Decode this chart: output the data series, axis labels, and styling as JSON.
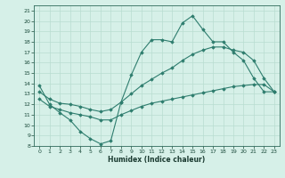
{
  "xlabel": "Humidex (Indice chaleur)",
  "ylabel": "",
  "bg_color": "#d6f0e8",
  "line_color": "#2e7d6e",
  "grid_color": "#b8ddd0",
  "xlim": [
    -0.5,
    23.5
  ],
  "ylim": [
    8,
    21.5
  ],
  "xticks": [
    0,
    1,
    2,
    3,
    4,
    5,
    6,
    7,
    8,
    9,
    10,
    11,
    12,
    13,
    14,
    15,
    16,
    17,
    18,
    19,
    20,
    21,
    22,
    23
  ],
  "yticks": [
    8,
    9,
    10,
    11,
    12,
    13,
    14,
    15,
    16,
    17,
    18,
    19,
    20,
    21
  ],
  "line1_x": [
    0,
    1,
    2,
    3,
    4,
    5,
    6,
    7,
    8,
    9,
    10,
    11,
    12,
    13,
    14,
    15,
    16,
    17,
    18,
    19,
    20,
    21,
    22,
    23
  ],
  "line1_y": [
    13.8,
    12.0,
    11.2,
    10.5,
    9.4,
    8.7,
    8.2,
    8.5,
    12.2,
    14.8,
    17.0,
    18.2,
    18.2,
    18.0,
    19.8,
    20.5,
    19.2,
    18.0,
    18.0,
    17.0,
    16.2,
    14.5,
    13.2,
    13.2
  ],
  "line2_x": [
    0,
    1,
    2,
    3,
    4,
    5,
    6,
    7,
    8,
    9,
    10,
    11,
    12,
    13,
    14,
    15,
    16,
    17,
    18,
    19,
    20,
    21,
    22,
    23
  ],
  "line2_y": [
    13.2,
    12.5,
    12.1,
    12.0,
    11.8,
    11.5,
    11.3,
    11.5,
    12.2,
    13.0,
    13.8,
    14.4,
    15.0,
    15.5,
    16.2,
    16.8,
    17.2,
    17.5,
    17.5,
    17.2,
    17.0,
    16.2,
    14.5,
    13.2
  ],
  "line3_x": [
    0,
    1,
    2,
    3,
    4,
    5,
    6,
    7,
    8,
    9,
    10,
    11,
    12,
    13,
    14,
    15,
    16,
    17,
    18,
    19,
    20,
    21,
    22,
    23
  ],
  "line3_y": [
    12.5,
    11.8,
    11.5,
    11.2,
    11.0,
    10.8,
    10.5,
    10.5,
    11.0,
    11.4,
    11.8,
    12.1,
    12.3,
    12.5,
    12.7,
    12.9,
    13.1,
    13.3,
    13.5,
    13.7,
    13.8,
    13.9,
    13.9,
    13.2
  ]
}
